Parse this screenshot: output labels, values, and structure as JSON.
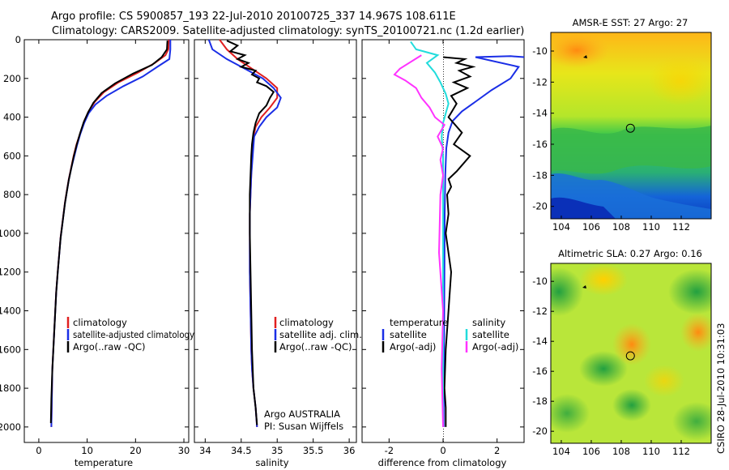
{
  "header": {
    "line1": "Argo profile: CS 5900857_193 22-Jul-2010 20100725_337 14.967S 108.611E",
    "line2": "Climatology: CARS2009. Satellite-adjusted climatology: synTS_20100721.nc (1.2d earlier)"
  },
  "colors": {
    "clim": "#e02020",
    "sat": "#1a2ee6",
    "argo": "#000000",
    "sat_diff": "#22dcdc",
    "argo_diff": "#ff33ff"
  },
  "chart_data": [
    {
      "type": "line",
      "title": "",
      "xlabel": "temperature",
      "ylabel": "",
      "xlim": [
        -3,
        31
      ],
      "ylim": [
        0,
        2080
      ],
      "x_ticks": [
        0,
        10,
        20,
        30
      ],
      "y_ticks": [
        0,
        200,
        400,
        600,
        800,
        1000,
        1200,
        1400,
        1600,
        1800,
        2000
      ],
      "legend": {
        "position": "lower-right",
        "entries": [
          "climatology",
          "satellite-adjusted climatology",
          "Argo(..raw -QC)"
        ]
      },
      "series": [
        {
          "name": "climatology",
          "color_key": "clim",
          "x": [
            26.9,
            26.8,
            26.2,
            24.0,
            20.5,
            16.5,
            13.5,
            11.6,
            10.3,
            9.4,
            8.6,
            7.8,
            7.2,
            6.7,
            6.2,
            5.8,
            5.4,
            5.1,
            4.8,
            4.5,
            4.3,
            4.1,
            3.9,
            3.6,
            3.4,
            3.2,
            3.0,
            2.8,
            2.7,
            2.6
          ],
          "depth": [
            0,
            50,
            80,
            120,
            170,
            220,
            270,
            320,
            370,
            420,
            480,
            540,
            600,
            660,
            720,
            780,
            840,
            900,
            960,
            1020,
            1080,
            1140,
            1200,
            1300,
            1400,
            1500,
            1600,
            1700,
            1850,
            2000
          ]
        },
        {
          "name": "satellite-adjusted climatology",
          "color_key": "sat",
          "x": [
            27.2,
            27.2,
            27.0,
            24.5,
            21.5,
            17.5,
            14.0,
            11.7,
            10.3,
            9.4,
            8.6,
            7.9,
            7.3,
            6.7,
            6.2,
            5.8,
            5.4,
            5.1,
            4.8,
            4.5,
            4.3,
            4.1,
            3.9,
            3.6,
            3.4,
            3.2,
            3.0,
            2.8,
            2.7,
            2.6
          ],
          "depth": [
            0,
            50,
            100,
            140,
            190,
            240,
            290,
            335,
            380,
            430,
            485,
            545,
            605,
            665,
            725,
            785,
            845,
            905,
            965,
            1025,
            1085,
            1145,
            1205,
            1305,
            1405,
            1505,
            1605,
            1705,
            1855,
            2000
          ]
        },
        {
          "name": "Argo(..raw -QC)",
          "color_key": "argo",
          "x": [
            26.6,
            26.5,
            25.4,
            23.4,
            19.5,
            15.8,
            13.0,
            11.3,
            10.2,
            9.3,
            8.5,
            7.8,
            7.2,
            6.7,
            6.2,
            5.8,
            5.4,
            5.1,
            4.8,
            4.5,
            4.3,
            4.1,
            3.9,
            3.6,
            3.4,
            3.2,
            3.0,
            2.8,
            2.6,
            2.5
          ],
          "depth": [
            5,
            50,
            90,
            130,
            175,
            225,
            275,
            325,
            375,
            425,
            485,
            545,
            605,
            665,
            725,
            785,
            845,
            905,
            965,
            1025,
            1085,
            1145,
            1205,
            1305,
            1405,
            1505,
            1605,
            1705,
            1855,
            1980
          ]
        }
      ]
    },
    {
      "type": "line",
      "title": "",
      "xlabel": "salinity",
      "ylabel": "",
      "xlim": [
        33.85,
        36.1
      ],
      "ylim": [
        0,
        2080
      ],
      "x_ticks": [
        34,
        34.5,
        35,
        35.5,
        36
      ],
      "y_ticks": [
        0,
        200,
        400,
        600,
        800,
        1000,
        1200,
        1400,
        1600,
        1800,
        2000
      ],
      "legend": {
        "position": "lower-right",
        "entries": [
          "climatology",
          "satellite adj. clim.",
          "Argo(..raw -QC)"
        ]
      },
      "annotation": [
        "Argo AUSTRALIA",
        "PI: Susan Wijffels"
      ],
      "series": [
        {
          "name": "climatology",
          "color_key": "clim",
          "x": [
            34.2,
            34.3,
            34.45,
            34.65,
            34.85,
            35.0,
            35.0,
            34.9,
            34.78,
            34.7,
            34.67,
            34.65,
            34.64,
            34.63,
            34.62,
            34.62,
            34.62,
            34.63,
            34.64,
            34.65,
            34.67,
            34.7,
            34.72
          ],
          "depth": [
            0,
            50,
            100,
            150,
            200,
            250,
            300,
            350,
            400,
            450,
            500,
            600,
            700,
            800,
            900,
            1000,
            1200,
            1400,
            1600,
            1700,
            1800,
            1900,
            2000
          ]
        },
        {
          "name": "satellite adj. clim.",
          "color_key": "sat",
          "x": [
            34.05,
            34.1,
            34.3,
            34.55,
            34.8,
            34.95,
            35.05,
            35.0,
            34.85,
            34.75,
            34.68,
            34.66,
            34.64,
            34.63,
            34.62,
            34.62,
            34.62,
            34.63,
            34.64,
            34.65,
            34.67,
            34.7,
            34.72
          ],
          "depth": [
            0,
            50,
            100,
            150,
            200,
            250,
            300,
            350,
            400,
            450,
            500,
            600,
            700,
            800,
            900,
            1000,
            1200,
            1400,
            1600,
            1700,
            1800,
            1900,
            2000
          ]
        },
        {
          "name": "Argo(..raw -QC)",
          "color_key": "argo",
          "x": [
            34.3,
            34.45,
            34.35,
            34.55,
            34.45,
            34.6,
            34.5,
            34.7,
            34.65,
            34.75,
            34.72,
            34.85,
            34.95,
            34.9,
            34.85,
            34.75,
            34.7,
            34.67,
            34.65,
            34.64,
            34.63,
            34.62,
            34.62,
            34.63,
            34.64,
            34.65,
            34.67,
            34.7,
            34.72
          ],
          "depth": [
            5,
            30,
            60,
            80,
            100,
            120,
            140,
            160,
            180,
            200,
            220,
            240,
            270,
            300,
            340,
            380,
            430,
            480,
            540,
            600,
            700,
            800,
            1000,
            1200,
            1400,
            1600,
            1800,
            1900,
            1990
          ]
        }
      ]
    },
    {
      "type": "line",
      "title": "",
      "xlabel": "difference from climatology",
      "ylabel": "",
      "xlim": [
        -3,
        3
      ],
      "ylim": [
        0,
        2080
      ],
      "x_ticks": [
        -2,
        0,
        2
      ],
      "y_ticks": [
        0,
        200,
        400,
        600,
        800,
        1000,
        1200,
        1400,
        1600,
        1800,
        2000
      ],
      "legend": {
        "position": "lower-center",
        "temperature_header": "temperature",
        "salinity_header": "salinity",
        "entries": [
          "satellite",
          "Argo(-adj)",
          "satellite",
          "Argo(-adj)"
        ]
      },
      "series": [
        {
          "name": "temperature satellite",
          "color_key": "sat",
          "x": [
            3.0,
            2.5,
            1.2,
            2.8,
            2.5,
            1.8,
            1.2,
            0.7,
            0.35,
            0.2,
            0.12,
            0.08,
            0.06,
            0.05,
            0.04,
            0.03,
            0.02
          ],
          "depth": [
            90,
            85,
            90,
            140,
            200,
            260,
            320,
            370,
            420,
            480,
            560,
            700,
            900,
            1200,
            1500,
            1800,
            2000
          ]
        },
        {
          "name": "temperature Argo(-adj)",
          "color_key": "argo",
          "x": [
            0.0,
            0.8,
            0.5,
            1.1,
            0.6,
            1.0,
            0.4,
            0.9,
            0.3,
            0.5,
            0.2,
            0.7,
            0.4,
            1.0,
            0.5,
            0.2,
            0.3,
            0.15,
            0.2,
            0.1,
            0.3,
            0.2,
            0.1,
            0.05,
            0.1,
            0.1
          ],
          "depth": [
            90,
            100,
            120,
            140,
            160,
            190,
            220,
            250,
            290,
            330,
            400,
            480,
            540,
            600,
            680,
            720,
            760,
            800,
            900,
            1000,
            1200,
            1400,
            1600,
            1800,
            1900,
            2000
          ]
        },
        {
          "name": "salinity satellite",
          "color_key": "sat_diff",
          "x": [
            -1.2,
            -1.0,
            -0.2,
            -0.6,
            -0.3,
            -0.1,
            0.1,
            0.2,
            0.1,
            0.0,
            -0.05,
            0.0,
            0.0,
            0.0,
            0.0,
            0.0,
            0.0
          ],
          "depth": [
            10,
            50,
            80,
            120,
            170,
            220,
            280,
            330,
            380,
            430,
            500,
            600,
            800,
            1000,
            1400,
            1800,
            2000
          ]
        },
        {
          "name": "salinity Argo(-adj)",
          "color_key": "argo_diff",
          "x": [
            -0.8,
            -1.6,
            -1.8,
            -1.4,
            -1.0,
            -0.8,
            -0.5,
            -0.3,
            0.05,
            -0.2,
            0.0,
            -0.1,
            0.0,
            -0.1,
            -0.15,
            0.0,
            -0.05,
            0.0
          ],
          "depth": [
            80,
            150,
            180,
            210,
            250,
            300,
            350,
            400,
            440,
            500,
            560,
            620,
            700,
            800,
            1100,
            1400,
            1700,
            2000
          ]
        }
      ]
    },
    {
      "type": "heatmap",
      "title": "AMSR-E SST: 27 Argo: 27",
      "xlabel": "",
      "ylabel": "",
      "xlim": [
        103.3,
        114.0
      ],
      "ylim": [
        -20.8,
        -8.8
      ],
      "x_ticks": [
        104,
        106,
        108,
        110,
        112
      ],
      "y_ticks": [
        -10,
        -12,
        -14,
        -16,
        -18,
        -20
      ],
      "marker": {
        "lon": 108.611,
        "lat": -14.967
      }
    },
    {
      "type": "heatmap",
      "title": "Altimetric SLA: 0.27 Argo: 0.16",
      "xlabel": "",
      "ylabel": "",
      "xlim": [
        103.3,
        114.0
      ],
      "ylim": [
        -20.8,
        -8.8
      ],
      "x_ticks": [
        104,
        106,
        108,
        110,
        112
      ],
      "y_ticks": [
        -10,
        -12,
        -14,
        -16,
        -18,
        -20
      ],
      "marker": {
        "lon": 108.611,
        "lat": -14.967
      }
    }
  ],
  "footer_credit": "CSIRO 28-Jul-2010 10:31:03"
}
